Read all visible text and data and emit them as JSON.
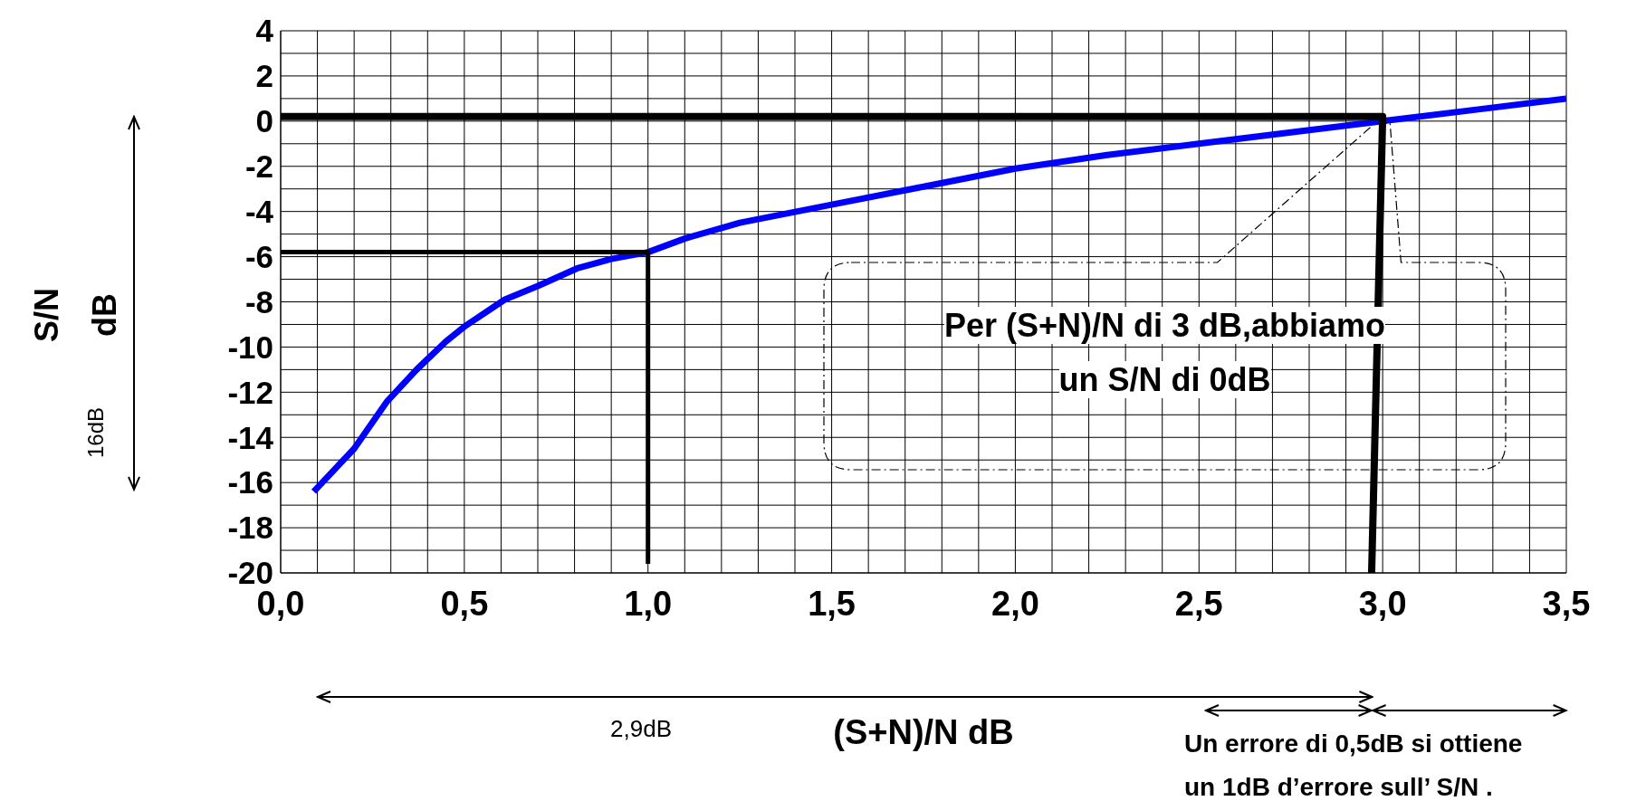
{
  "chart_data": {
    "type": "line",
    "xlabel": "(S+N)/N dB",
    "ylabel": "S/N dB",
    "xlim": [
      0,
      3.5
    ],
    "ylim": [
      -20,
      4
    ],
    "xticks": [
      {
        "value": 0,
        "label": "0,0"
      },
      {
        "value": 0.1,
        "label": null
      },
      {
        "value": 0.2,
        "label": null
      },
      {
        "value": 0.3,
        "label": null
      },
      {
        "value": 0.4,
        "label": null
      },
      {
        "value": 0.5,
        "label": "0,5"
      },
      {
        "value": 0.6,
        "label": null
      },
      {
        "value": 0.7,
        "label": null
      },
      {
        "value": 0.8,
        "label": null
      },
      {
        "value": 0.9,
        "label": null
      },
      {
        "value": 1,
        "label": "1,0"
      },
      {
        "value": 1.1,
        "label": null
      },
      {
        "value": 1.2,
        "label": null
      },
      {
        "value": 1.3,
        "label": null
      },
      {
        "value": 1.4,
        "label": null
      },
      {
        "value": 1.5,
        "label": "1,5"
      },
      {
        "value": 1.6,
        "label": null
      },
      {
        "value": 1.7,
        "label": null
      },
      {
        "value": 1.8,
        "label": null
      },
      {
        "value": 1.9,
        "label": null
      },
      {
        "value": 2,
        "label": "2,0"
      },
      {
        "value": 2.1,
        "label": null
      },
      {
        "value": 2.2,
        "label": null
      },
      {
        "value": 2.3,
        "label": null
      },
      {
        "value": 2.4,
        "label": null
      },
      {
        "value": 2.5,
        "label": "2,5"
      },
      {
        "value": 2.6,
        "label": null
      },
      {
        "value": 2.7,
        "label": null
      },
      {
        "value": 2.8,
        "label": null
      },
      {
        "value": 2.9,
        "label": null
      },
      {
        "value": 3,
        "label": "3,0"
      },
      {
        "value": 3.1,
        "label": null
      },
      {
        "value": 3.2,
        "label": null
      },
      {
        "value": 3.3,
        "label": null
      },
      {
        "value": 3.4,
        "label": null
      },
      {
        "value": 3.5,
        "label": "3,5"
      }
    ],
    "yticks": [
      4,
      {
        "value": 3,
        "label": null
      },
      2,
      {
        "value": 1,
        "label": null
      },
      0,
      {
        "value": -1,
        "label": null
      },
      -2,
      {
        "value": -3,
        "label": null
      },
      -4,
      {
        "value": -5,
        "label": null
      },
      -6,
      {
        "value": -7,
        "label": null
      },
      -8,
      {
        "value": -9,
        "label": null
      },
      -10,
      {
        "value": -11,
        "label": null
      },
      -12,
      {
        "value": -13,
        "label": null
      },
      -14,
      {
        "value": -15,
        "label": null
      },
      -16,
      {
        "value": -17,
        "label": null
      },
      -18,
      {
        "value": -19,
        "label": null
      },
      -20
    ],
    "grid": true,
    "marker": "none",
    "line_style": "solid",
    "series": [
      {
        "color": "#0000ff",
        "x": [
          0.09,
          0.2,
          0.29,
          0.37,
          0.45,
          0.5,
          0.61,
          0.7,
          0.81,
          0.9,
          1.0,
          1.1,
          1.25,
          1.5,
          1.75,
          2.0,
          2.25,
          2.5,
          2.75,
          3.0,
          3.25,
          3.5
        ],
        "values": [
          -16.4,
          -14.5,
          -12.4,
          -11.0,
          -9.75,
          -9.1,
          -7.9,
          -7.3,
          -6.5,
          -6.1,
          -5.8,
          -5.2,
          -4.5,
          -3.7,
          -2.9,
          -2.1,
          -1.5,
          -1.0,
          -0.5,
          0.0,
          0.5,
          1.0
        ]
      },
      {
        "color": "#000000",
        "x": [
          0,
          3.0,
          2.97
        ],
        "values": [
          0.2,
          0.2,
          -20
        ]
      },
      {
        "color": "#000000",
        "x": [
          0,
          1.0,
          1.0
        ],
        "values": [
          -5.8,
          -5.8,
          -19.6
        ]
      }
    ],
    "annotations": [
      "Per (S+N)/N di 3 dB,abbiamo\nun S/N di 0dB",
      "16dB",
      "2,9dB",
      "Un errore di 0,5dB si ottiene\nun 1dB d’errore sull’ S/N ."
    ]
  }
}
